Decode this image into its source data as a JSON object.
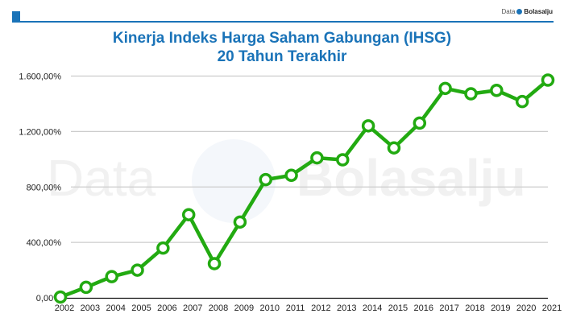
{
  "header": {
    "brand_prefix": "Data",
    "brand_name": "Bolasalju",
    "title_line1": "Kinerja Indeks Harga Saham Gabungan (IHSG)",
    "title_line2": "20 Tahun Terakhir"
  },
  "watermark": {
    "left": "Data",
    "right": "Bolasalju"
  },
  "colors": {
    "accent": "#1a73b8",
    "line": "#22aa11",
    "grid": "#cccccc"
  },
  "chart_data": {
    "type": "line",
    "title": "Kinerja Indeks Harga Saham Gabungan (IHSG) 20 Tahun Terakhir",
    "xlabel": "",
    "ylabel": "",
    "ylim": [
      0,
      1600
    ],
    "yticks": [
      "0,00%",
      "400,00%",
      "800,00%",
      "1.200,00%",
      "1.600,00%"
    ],
    "ytick_values": [
      0,
      400,
      800,
      1200,
      1600
    ],
    "grid": true,
    "legend": "none",
    "categories": [
      "2002",
      "2003",
      "2004",
      "2005",
      "2006",
      "2007",
      "2008",
      "2009",
      "2010",
      "2011",
      "2012",
      "2013",
      "2014",
      "2015",
      "2016",
      "2017",
      "2018",
      "2019",
      "2020",
      "2021"
    ],
    "series": [
      {
        "name": "IHSG",
        "values": [
          6,
          76,
          153,
          200,
          359,
          600,
          247,
          547,
          853,
          884,
          1010,
          996,
          1241,
          1082,
          1261,
          1511,
          1472,
          1497,
          1416,
          1571
        ]
      }
    ]
  }
}
